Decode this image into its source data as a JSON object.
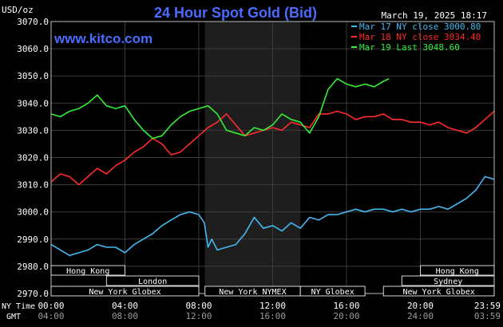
{
  "header": {
    "title": "24 Hour Spot Gold (Bid)",
    "unit": "USD/oz",
    "timestamp": "March 19, 2025 18:17",
    "site": "www.kitco.com"
  },
  "colors": {
    "background": "#000000",
    "grid": "#3c3c3c",
    "title": "#4a6cff",
    "site": "#4a6cff",
    "text": "#ffffff",
    "nymex_shade": "#1e1e1e",
    "mar17": "#44b8f0",
    "mar18": "#ff2a2a",
    "mar19": "#33ee33"
  },
  "sessions": [
    {
      "label": "Hong Kong",
      "start": "00:00",
      "end": "04:00"
    },
    {
      "label": "London",
      "start": "03:00",
      "end": "08:00"
    },
    {
      "label": "New York Globex",
      "start": "00:00",
      "end": "08:00"
    },
    {
      "label": "New York NYMEX",
      "start": "08:20",
      "end": "13:30"
    },
    {
      "label": "NY Globex",
      "start": "13:30",
      "end": "17:00"
    },
    {
      "label": "Hong Kong",
      "start": "20:00",
      "end": "24:00"
    },
    {
      "label": "Sydney",
      "start": "19:00",
      "end": "24:00"
    },
    {
      "label": "New York Globex",
      "start": "18:00",
      "end": "24:00"
    }
  ],
  "chart_data": {
    "type": "line",
    "title": "24 Hour Spot Gold (Bid)",
    "ylabel": "USD/oz",
    "ylim": [
      2970,
      3070
    ],
    "yticks": [
      "3070.0",
      "3060.0",
      "3050.0",
      "3040.0",
      "3030.0",
      "3020.0",
      "3010.0",
      "3000.0",
      "2990.0",
      "2980.0",
      "2970.0"
    ],
    "xlim": [
      0,
      24
    ],
    "xrow1_label": "NY Time",
    "xrow2_label": "GMT",
    "xticks_ny": [
      "00:00",
      "04:00",
      "08:00",
      "12:00",
      "16:00",
      "20:00",
      "23:59"
    ],
    "xticks_gmt": [
      "04:00",
      "08:00",
      "12:00",
      "16:00",
      "20:00",
      "24:00",
      "03:59"
    ],
    "nymex_range": [
      8.33,
      13.5
    ],
    "grid": true,
    "legend_position": "top-right",
    "series": [
      {
        "name": "Mar 17 NY close 3000.80",
        "color": "#44b8f0",
        "x": [
          0,
          0.5,
          1,
          1.5,
          2,
          2.5,
          3,
          3.5,
          4,
          4.5,
          5,
          5.5,
          6,
          6.5,
          7,
          7.5,
          8,
          8.3,
          8.5,
          8.7,
          9,
          9.5,
          10,
          10.5,
          11,
          11.5,
          12,
          12.5,
          13,
          13.5,
          14,
          14.5,
          15,
          15.5,
          16,
          16.5,
          17,
          17.5,
          18,
          18.5,
          19,
          19.5,
          20,
          20.5,
          21,
          21.5,
          22,
          22.5,
          23,
          23.5,
          24
        ],
        "y": [
          2988,
          2986,
          2984,
          2985,
          2986,
          2988,
          2987,
          2987,
          2985,
          2988,
          2990,
          2992,
          2995,
          2997,
          2999,
          3000,
          2999,
          2996,
          2987,
          2990,
          2986,
          2987,
          2988,
          2992,
          2998,
          2994,
          2995,
          2993,
          2996,
          2994,
          2998,
          2997,
          2999,
          2999,
          3000,
          3001,
          3000,
          3001,
          3001,
          3000,
          3001,
          3000,
          3001,
          3001,
          3002,
          3001,
          3003,
          3005,
          3008,
          3013,
          3012
        ]
      },
      {
        "name": "Mar 18 NY close 3034.40",
        "color": "#ff2a2a",
        "x": [
          0,
          0.5,
          1,
          1.5,
          2,
          2.5,
          3,
          3.5,
          4,
          4.5,
          5,
          5.5,
          6,
          6.5,
          7,
          7.5,
          8,
          8.5,
          9,
          9.5,
          10,
          10.5,
          11,
          11.5,
          12,
          12.5,
          13,
          13.5,
          14,
          14.5,
          15,
          15.5,
          16,
          16.5,
          17,
          17.5,
          18,
          18.5,
          19,
          19.5,
          20,
          20.5,
          21,
          21.5,
          22,
          22.5,
          23,
          23.5,
          24
        ],
        "y": [
          3011,
          3014,
          3013,
          3010,
          3013,
          3016,
          3014,
          3017,
          3019,
          3022,
          3024,
          3027,
          3025,
          3021,
          3022,
          3025,
          3028,
          3031,
          3033,
          3036,
          3032,
          3028,
          3029,
          3030,
          3031,
          3030,
          3033,
          3032,
          3031,
          3036,
          3036,
          3037,
          3036,
          3034,
          3035,
          3035,
          3036,
          3034,
          3034,
          3033,
          3033,
          3032,
          3033,
          3031,
          3030,
          3029,
          3031,
          3034,
          3037
        ]
      },
      {
        "name": "Mar 19 Last 3048.60",
        "color": "#33ee33",
        "x": [
          0,
          0.5,
          1,
          1.5,
          2,
          2.5,
          3,
          3.5,
          4,
          4.5,
          5,
          5.5,
          6,
          6.5,
          7,
          7.5,
          8,
          8.5,
          9,
          9.5,
          10,
          10.5,
          11,
          11.5,
          12,
          12.5,
          13,
          13.5,
          14,
          14.5,
          15,
          15.5,
          16,
          16.5,
          17,
          17.5,
          18,
          18.3
        ],
        "y": [
          3036,
          3035,
          3037,
          3038,
          3040,
          3043,
          3039,
          3038,
          3039,
          3034,
          3030,
          3027,
          3028,
          3032,
          3035,
          3037,
          3038,
          3039,
          3036,
          3030,
          3029,
          3028,
          3031,
          3030,
          3032,
          3036,
          3034,
          3033,
          3029,
          3035,
          3045,
          3049,
          3047,
          3046,
          3047,
          3046,
          3048,
          3049
        ]
      }
    ]
  }
}
